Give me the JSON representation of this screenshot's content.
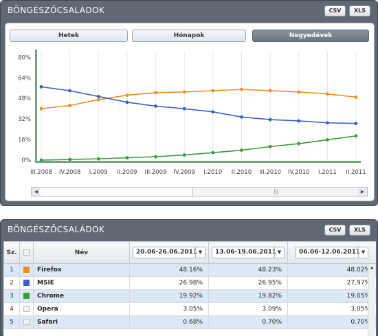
{
  "chart_panel": {
    "title": "BÖNGÉSZŐCSALÁDOK",
    "export": {
      "csv": "CSV",
      "xls": "XLS"
    },
    "tabs": [
      "Hetek",
      "Hónapok",
      "Negyedévek"
    ],
    "active_tab": "Negyedévek",
    "scroll_grip": "|||"
  },
  "chart_data": {
    "type": "line",
    "x": [
      "III.2008",
      "IV.2008",
      "I.2009",
      "II.2009",
      "III.2009",
      "IV.2009",
      "I.2010",
      "II.2010",
      "III.2010",
      "IV.2010",
      "I.2011",
      "II.2011"
    ],
    "x_tick_labels": [
      "III.2008",
      "IV.2008",
      "I.2009",
      "II.2009",
      "III.2009",
      "IV.2009",
      "I.2010",
      "II.2010",
      "III.2010",
      "IV.2010",
      "I.2011",
      "II.2011"
    ],
    "y_ticks": [
      "80%",
      "64%",
      "48%",
      "32%",
      "16%",
      "0%"
    ],
    "ylim": [
      0,
      85
    ],
    "grid": "vertical",
    "series": [
      {
        "name": "Firefox",
        "color": "#f28c1e",
        "values": [
          40,
          42.5,
          47,
          50.5,
          52.5,
          53,
          54,
          55,
          54,
          53,
          51.5,
          49
        ]
      },
      {
        "name": "MSIE",
        "color": "#3b5fc4",
        "values": [
          57,
          54,
          49.5,
          45,
          42,
          40,
          37.5,
          33.5,
          31.5,
          30.5,
          29,
          28.5
        ]
      },
      {
        "name": "Chrome",
        "color": "#3a9a3a",
        "values": [
          0,
          0.5,
          1,
          1.8,
          2.6,
          4,
          5.8,
          7.7,
          10.5,
          12.8,
          15.8,
          18.8
        ]
      }
    ]
  },
  "table_panel": {
    "title": "BÖNGÉSZŐCSALÁDOK",
    "export": {
      "csv": "CSV",
      "xls": "XLS"
    },
    "headers": {
      "index": "Sz.",
      "name": "Név"
    },
    "date_ranges": [
      "20.06-26.06.2011",
      "13.06-19.06.2011",
      "06.06-12.06.2011"
    ],
    "rows": [
      {
        "idx": "1",
        "name": "Firefox",
        "color": "#f28c1e",
        "values": [
          "48.16%",
          "48.23%",
          "48.02%"
        ]
      },
      {
        "idx": "2",
        "name": "MSIE",
        "color": "#3b5fc4",
        "values": [
          "26.98%",
          "26.95%",
          "27.97%"
        ]
      },
      {
        "idx": "3",
        "name": "Chrome",
        "color": "#3a9a3a",
        "values": [
          "19.92%",
          "19.82%",
          "19.05%"
        ]
      },
      {
        "idx": "4",
        "name": "Opera",
        "color": "",
        "values": [
          "3.05%",
          "3.09%",
          "3.05%"
        ]
      },
      {
        "idx": "5",
        "name": "Safari",
        "color": "",
        "values": [
          "0.68%",
          "0.70%",
          "0.70%"
        ]
      }
    ]
  }
}
